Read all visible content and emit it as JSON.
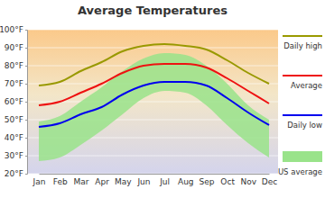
{
  "chart_data": {
    "type": "line",
    "title": "Average Temperatures",
    "categories": [
      "Jan",
      "Feb",
      "Mar",
      "Apr",
      "May",
      "Jun",
      "Jul",
      "Aug",
      "Sep",
      "Oct",
      "Nov",
      "Dec"
    ],
    "series": [
      {
        "name": "Daily high",
        "color": "#999900",
        "values": [
          69,
          71,
          77,
          82,
          88,
          91,
          92,
          91,
          89,
          83,
          76,
          70
        ]
      },
      {
        "name": "Average",
        "color": "#ee1111",
        "values": [
          58,
          60,
          65,
          70,
          76,
          80,
          81,
          81,
          79,
          73,
          66,
          59
        ]
      },
      {
        "name": "Daily low",
        "color": "#0000ee",
        "values": [
          46,
          48,
          53,
          57,
          64,
          69,
          71,
          71,
          69,
          62,
          54,
          47
        ]
      },
      {
        "name": "US average",
        "color": "#99e38a",
        "type": "area",
        "low": [
          27,
          29,
          36,
          44,
          53,
          62,
          66,
          65,
          58,
          47,
          37,
          29
        ],
        "high": [
          49,
          52,
          60,
          68,
          77,
          84,
          87,
          86,
          80,
          70,
          58,
          50
        ]
      }
    ],
    "ylim": [
      20,
      100
    ],
    "yticks": [
      {
        "value": 20,
        "label": "20°F"
      },
      {
        "value": 30,
        "label": "30°F"
      },
      {
        "value": 40,
        "label": "40°F"
      },
      {
        "value": 50,
        "label": "50°F"
      },
      {
        "value": 60,
        "label": "60°F"
      },
      {
        "value": 70,
        "label": "70°F"
      },
      {
        "value": 80,
        "label": "80°F"
      },
      {
        "value": 90,
        "label": "90°F"
      },
      {
        "value": 100,
        "label": "100°F"
      }
    ],
    "grid": true
  }
}
